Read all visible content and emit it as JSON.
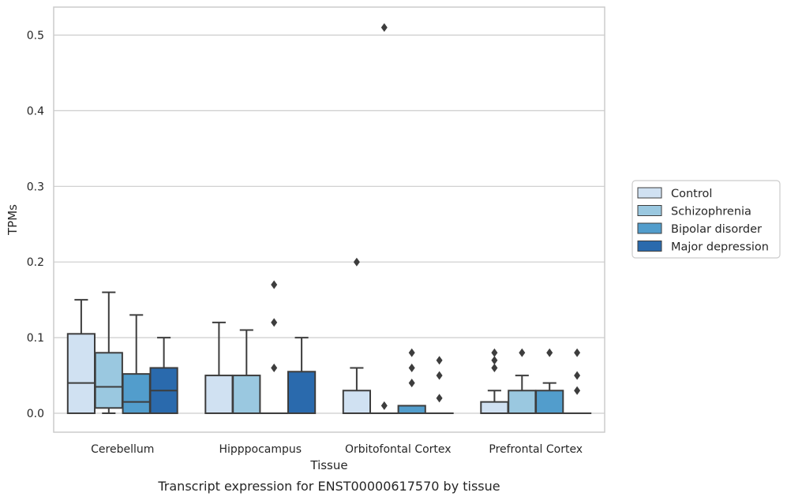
{
  "chart_data": {
    "type": "boxplot",
    "title": "",
    "caption": "Transcript expression for ENST00000617570 by tissue",
    "xlabel": "Tissue",
    "ylabel": "TPMs",
    "ylim": [
      -0.025,
      0.537
    ],
    "yticks": [
      "0.0",
      "0.1",
      "0.2",
      "0.3",
      "0.4",
      "0.5"
    ],
    "ytick_values": [
      0.0,
      0.1,
      0.2,
      0.3,
      0.4,
      0.5
    ],
    "grid": true,
    "legend_position": "right",
    "categories": [
      "Cerebellum",
      "Hipppocampus",
      "Orbitofontal Cortex",
      "Prefrontal Cortex"
    ],
    "series": [
      {
        "name": "Control",
        "color": "#d0e1f2",
        "boxes": [
          {
            "whislo": 0.0,
            "q1": 0.0,
            "med": 0.04,
            "q3": 0.105,
            "whishi": 0.15,
            "fliers": []
          },
          {
            "whislo": 0.0,
            "q1": 0.0,
            "med": 0.0,
            "q3": 0.05,
            "whishi": 0.12,
            "fliers": []
          },
          {
            "whislo": 0.0,
            "q1": 0.0,
            "med": 0.0,
            "q3": 0.03,
            "whishi": 0.06,
            "fliers": [
              0.2
            ]
          },
          {
            "whislo": 0.0,
            "q1": 0.0,
            "med": 0.0,
            "q3": 0.015,
            "whishi": 0.03,
            "fliers": [
              0.06,
              0.07,
              0.08
            ]
          }
        ]
      },
      {
        "name": "Schizophrenia",
        "color": "#9ac8e0",
        "boxes": [
          {
            "whislo": 0.0,
            "q1": 0.007,
            "med": 0.035,
            "q3": 0.08,
            "whishi": 0.16,
            "fliers": []
          },
          {
            "whislo": 0.0,
            "q1": 0.0,
            "med": 0.0,
            "q3": 0.05,
            "whishi": 0.11,
            "fliers": []
          },
          {
            "whislo": 0.0,
            "q1": 0.0,
            "med": 0.0,
            "q3": 0.0,
            "whishi": 0.0,
            "fliers": [
              0.01,
              0.51
            ]
          },
          {
            "whislo": 0.0,
            "q1": 0.0,
            "med": 0.0,
            "q3": 0.03,
            "whishi": 0.05,
            "fliers": [
              0.08
            ]
          }
        ]
      },
      {
        "name": "Bipolar disorder",
        "color": "#529dcc",
        "boxes": [
          {
            "whislo": 0.0,
            "q1": 0.0,
            "med": 0.015,
            "q3": 0.052,
            "whishi": 0.13,
            "fliers": []
          },
          {
            "whislo": 0.0,
            "q1": 0.0,
            "med": 0.0,
            "q3": 0.0,
            "whishi": 0.0,
            "fliers": [
              0.06,
              0.12,
              0.17
            ]
          },
          {
            "whislo": 0.0,
            "q1": 0.0,
            "med": 0.0,
            "q3": 0.01,
            "whishi": 0.01,
            "fliers": [
              0.04,
              0.06,
              0.08
            ]
          },
          {
            "whislo": 0.0,
            "q1": 0.0,
            "med": 0.0,
            "q3": 0.03,
            "whishi": 0.04,
            "fliers": [
              0.08
            ]
          }
        ]
      },
      {
        "name": "Major depression",
        "color": "#2a6aad",
        "boxes": [
          {
            "whislo": 0.0,
            "q1": 0.0,
            "med": 0.03,
            "q3": 0.06,
            "whishi": 0.1,
            "fliers": []
          },
          {
            "whislo": 0.0,
            "q1": 0.0,
            "med": 0.0,
            "q3": 0.055,
            "whishi": 0.1,
            "fliers": []
          },
          {
            "whislo": 0.0,
            "q1": 0.0,
            "med": 0.0,
            "q3": 0.0,
            "whishi": 0.0,
            "fliers": [
              0.02,
              0.05,
              0.07
            ]
          },
          {
            "whislo": 0.0,
            "q1": 0.0,
            "med": 0.0,
            "q3": 0.0,
            "whishi": 0.0,
            "fliers": [
              0.03,
              0.05,
              0.08
            ]
          }
        ]
      }
    ]
  },
  "style": {
    "grid_color": "#cccccc",
    "frame_color": "#cccccc",
    "line_color": "#3d3d3d",
    "text_color": "#262626"
  }
}
